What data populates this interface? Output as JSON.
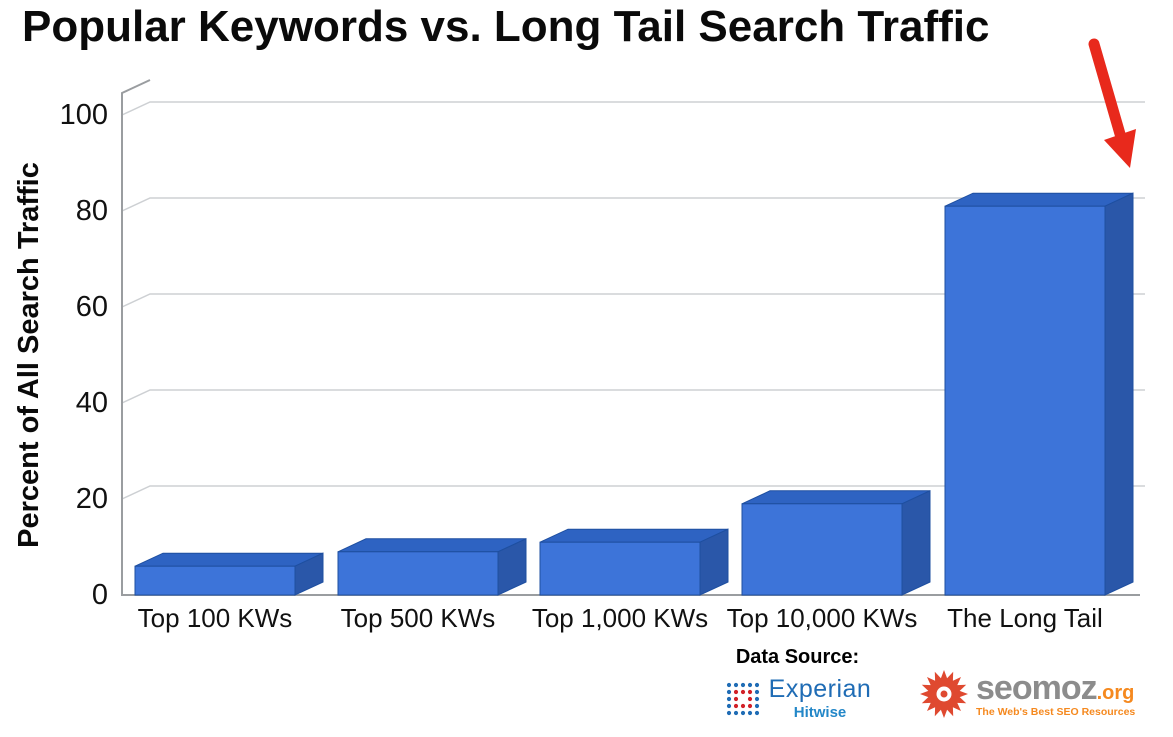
{
  "page": {
    "background": "#ffffff"
  },
  "chart_data": {
    "type": "bar",
    "style": "3d",
    "title": "Popular Keywords vs. Long Tail Search Traffic",
    "ylabel": "Percent of All Search Traffic",
    "xlabel": "",
    "categories": [
      "Top 100 KWs",
      "Top 500 KWs",
      "Top 1,000 KWs",
      "Top 10,000 KWs",
      "The Long Tail"
    ],
    "values": [
      6,
      9,
      11,
      19,
      81
    ],
    "units": "percent of all search traffic",
    "ylim": [
      0,
      100
    ],
    "yticks": [
      "0",
      "20",
      "40",
      "60",
      "80",
      "100"
    ],
    "grid": true,
    "legend": false,
    "bar_face_color": "#3D74D9",
    "bar_top_color": "#2E63C2",
    "bar_side_color": "#2A57A9",
    "bar_edge_color": "#1E4FA0",
    "annotation": {
      "type": "arrow",
      "color": "#E8291C",
      "target": "The Long Tail"
    }
  },
  "footer": {
    "data_source_label": "Data Source:",
    "experian": {
      "name": "Experian",
      "sub": "Hitwise"
    },
    "seomoz": {
      "name": "seomoz",
      "tld": ".org",
      "tagline": "The Web's Best SEO Resources"
    }
  },
  "colors": {
    "experian_blue": "#1F6CB5",
    "experian_red": "#D22128",
    "hitwise_blue": "#2387C8",
    "moz_red": "#DF4930",
    "moz_gray": "#8C8C8C",
    "moz_orange": "#F5891F",
    "arrow_red": "#E8291C",
    "grid_gray": "#CDD0D3"
  }
}
